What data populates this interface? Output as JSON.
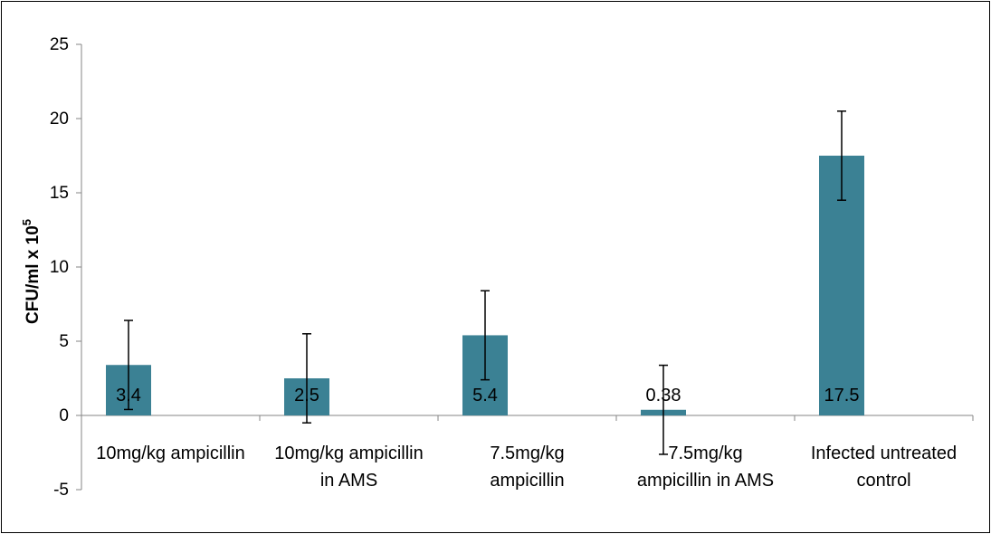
{
  "chart_data": {
    "type": "bar",
    "ylabel": "CFU/ml x 10",
    "ylabel_superscript": "5",
    "ylim": [
      -5,
      25
    ],
    "yticks": [
      -5,
      0,
      5,
      10,
      15,
      20,
      25
    ],
    "categories": [
      [
        "10mg/kg ampicillin"
      ],
      [
        "10mg/kg ampicillin",
        "in AMS"
      ],
      [
        "7.5mg/kg",
        "ampicillin"
      ],
      [
        "7.5mg/kg",
        "ampicillin in AMS"
      ],
      [
        "Infected untreated",
        "control"
      ]
    ],
    "values": [
      3.4,
      2.5,
      5.4,
      0.38,
      17.5
    ],
    "data_labels": [
      "3.4",
      "2.5",
      "5.4",
      "0.38",
      "17.5"
    ],
    "error_bars": [
      3.0,
      3.0,
      3.0,
      3.0,
      3.0
    ],
    "bar_color": "#3b8194",
    "grid": false,
    "legend": "none"
  }
}
